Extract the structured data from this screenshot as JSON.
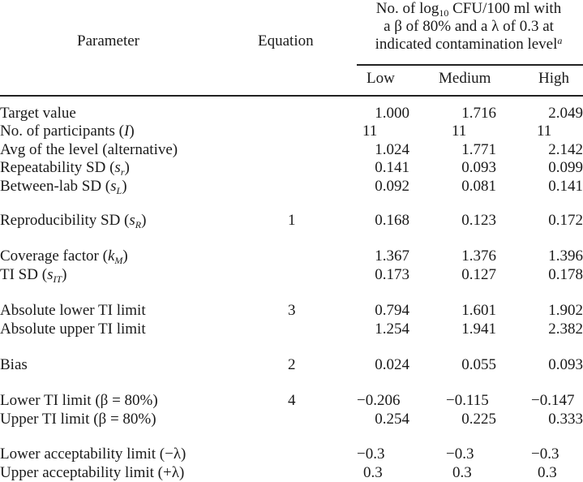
{
  "header": {
    "parameter": "Parameter",
    "equation": "Equation",
    "span_line1_pre": "No. of log",
    "span_line1_sub": "10",
    "span_line1_post": " CFU/100 ml with",
    "span_line2": "a β of 80% and a λ of 0.3 at",
    "span_line3": "indicated contamination level",
    "span_line3_sup": "a",
    "levels": [
      "Low",
      "Medium",
      "High"
    ]
  },
  "rows": [
    {
      "pre": "Target value",
      "sym": "",
      "sub": "",
      "post": "",
      "eq": "",
      "values": [
        "1.000",
        "1.716",
        "2.049"
      ]
    },
    {
      "pre": "No. of participants (",
      "sym": "I",
      "sub": "",
      "post": ")",
      "eq": "",
      "values": [
        "11",
        "11",
        "11"
      ]
    },
    {
      "pre": "Avg of the level (alternative)",
      "sym": "",
      "sub": "",
      "post": "",
      "eq": "",
      "values": [
        "1.024",
        "1.771",
        "2.142"
      ]
    },
    {
      "pre": "Repeatability SD (",
      "sym": "s",
      "sub": "r",
      "post": ")",
      "eq": "",
      "values": [
        "0.141",
        "0.093",
        "0.099"
      ]
    },
    {
      "pre": "Between-lab SD (",
      "sym": "s",
      "sub": "L",
      "post": ")",
      "eq": "",
      "values": [
        "0.092",
        "0.081",
        "0.141"
      ]
    },
    {
      "pre": "Reproducibility SD (",
      "sym": "s",
      "sub": "R",
      "post": ")",
      "eq": "1",
      "values": [
        "0.168",
        "0.123",
        "0.172"
      ]
    },
    {
      "pre": "Coverage factor (",
      "sym": "k",
      "sub": "M",
      "post": ")",
      "eq": "",
      "values": [
        "1.367",
        "1.376",
        "1.396"
      ]
    },
    {
      "pre": "TI SD (",
      "sym": "s",
      "sub": "IT",
      "post": ")",
      "eq": "",
      "values": [
        "0.173",
        "0.127",
        "0.178"
      ]
    },
    {
      "pre": "Absolute lower TI limit",
      "sym": "",
      "sub": "",
      "post": "",
      "eq": "3",
      "values": [
        "0.794",
        "1.601",
        "1.902"
      ]
    },
    {
      "pre": "Absolute upper TI limit",
      "sym": "",
      "sub": "",
      "post": "",
      "eq": "",
      "values": [
        "1.254",
        "1.941",
        "2.382"
      ]
    },
    {
      "pre": "Bias",
      "sym": "",
      "sub": "",
      "post": "",
      "eq": "2",
      "values": [
        "0.024",
        "0.055",
        "0.093"
      ]
    },
    {
      "pre": "Lower TI limit (β = 80%)",
      "sym": "",
      "sub": "",
      "post": "",
      "eq": "4",
      "values": [
        "−0.206",
        "−0.115",
        "−0.147"
      ]
    },
    {
      "pre": "Upper TI limit (β = 80%)",
      "sym": "",
      "sub": "",
      "post": "",
      "eq": "",
      "values": [
        "0.254",
        "0.225",
        "0.333"
      ]
    },
    {
      "pre": "Lower acceptability limit (−λ)",
      "sym": "",
      "sub": "",
      "post": "",
      "eq": "",
      "values": [
        "−0.3",
        "−0.3",
        "−0.3"
      ]
    },
    {
      "pre": "Upper acceptability limit (+λ)",
      "sym": "",
      "sub": "",
      "post": "",
      "eq": "",
      "values": [
        "0.3",
        "0.3",
        "0.3"
      ]
    }
  ]
}
